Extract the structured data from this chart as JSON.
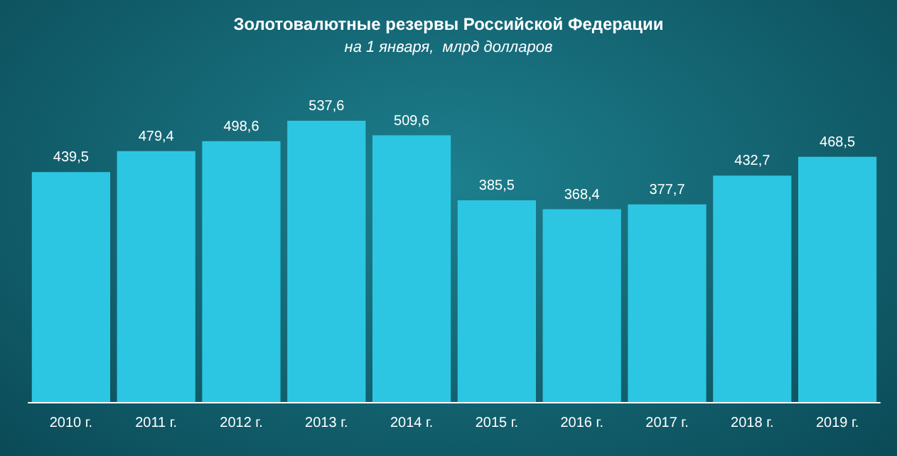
{
  "chart_data": {
    "type": "bar",
    "title": "Золотовалютные резервы Российской Федерации",
    "subtitle": "на 1 января,  млрд долларов",
    "categories": [
      "2010 г.",
      "2011 г.",
      "2012 г.",
      "2013 г.",
      "2014 г.",
      "2015 г.",
      "2016 г.",
      "2017 г.",
      "2018 г.",
      "2019 г."
    ],
    "values": [
      439.5,
      479.4,
      498.6,
      537.6,
      509.6,
      385.5,
      368.4,
      377.7,
      432.7,
      468.5
    ],
    "value_labels": [
      "439,5",
      "479,4",
      "498,6",
      "537,6",
      "509,6",
      "385,5",
      "368,4",
      "377,7",
      "432,7",
      "468,5"
    ],
    "color": "#2cc6e2"
  }
}
